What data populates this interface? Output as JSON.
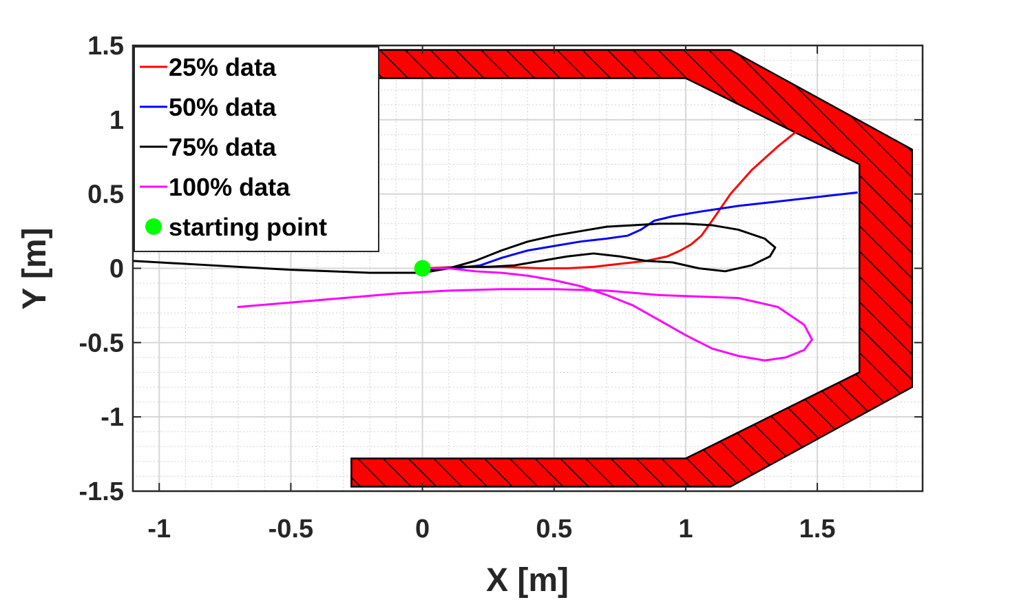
{
  "chart_data": {
    "type": "line",
    "xlabel": "X [m]",
    "ylabel": "Y [m]",
    "xlim": [
      -1.1,
      1.9
    ],
    "ylim": [
      -1.5,
      1.5
    ],
    "xticks": [
      -1,
      -0.5,
      0,
      0.5,
      1,
      1.5
    ],
    "xtick_labels": [
      "-1",
      "-0.5",
      "0",
      "0.5",
      "1",
      "1.5"
    ],
    "yticks": [
      1.5,
      1,
      0.5,
      0,
      -0.5,
      -1,
      -1.5
    ],
    "ytick_labels": [
      "1.5",
      "1",
      "0.5",
      "0",
      "-0.5",
      "-1",
      "-1.5"
    ],
    "grid": true,
    "minor_grid": true,
    "legend_position": "top-left",
    "obstacles": [
      {
        "fill": "#ff0000",
        "hatch": "diagonal",
        "points": [
          [
            -0.2,
            1.47
          ],
          [
            1.17,
            1.47
          ],
          [
            1.86,
            0.8
          ],
          [
            1.86,
            -0.8
          ],
          [
            1.17,
            -1.47
          ],
          [
            -0.27,
            -1.47
          ],
          [
            -0.27,
            -1.28
          ],
          [
            1.0,
            -1.28
          ],
          [
            1.66,
            -0.7
          ],
          [
            1.66,
            0.7
          ],
          [
            1.0,
            1.28
          ],
          [
            -0.2,
            1.28
          ]
        ]
      }
    ],
    "series": [
      {
        "name": "25% data",
        "color": "#ff0000",
        "x": [
          0,
          0.15,
          0.3,
          0.45,
          0.55,
          0.65,
          0.75,
          0.85,
          0.93,
          0.98,
          1.02,
          1.06,
          1.1,
          1.17,
          1.25,
          1.35,
          1.42
        ],
        "y": [
          0,
          0.01,
          0.01,
          0.0,
          0.0,
          0.01,
          0.03,
          0.05,
          0.08,
          0.12,
          0.16,
          0.22,
          0.32,
          0.5,
          0.66,
          0.82,
          0.92
        ]
      },
      {
        "name": "50% data",
        "color": "#0000ff",
        "x": [
          0,
          0.12,
          0.22,
          0.3,
          0.4,
          0.5,
          0.6,
          0.7,
          0.78,
          0.83,
          0.88,
          0.95,
          1.05,
          1.2,
          1.35,
          1.5,
          1.65
        ],
        "y": [
          0,
          0.0,
          0.02,
          0.07,
          0.12,
          0.15,
          0.18,
          0.2,
          0.22,
          0.26,
          0.32,
          0.35,
          0.38,
          0.42,
          0.45,
          0.48,
          0.51
        ]
      },
      {
        "name": "75% data",
        "color": "#000000",
        "x": [
          -1.1,
          -0.8,
          -0.5,
          -0.2,
          0,
          0.1,
          0.2,
          0.3,
          0.4,
          0.5,
          0.6,
          0.7,
          0.8,
          0.9,
          1.0,
          1.1,
          1.2,
          1.3,
          1.34,
          1.32,
          1.25,
          1.15,
          1.05,
          0.95,
          0.85,
          0.75,
          0.65,
          0.55,
          0.45,
          0.35,
          0.25,
          0.15,
          0.07,
          0
        ],
        "y": [
          0.05,
          0.02,
          -0.01,
          -0.03,
          -0.03,
          0.0,
          0.05,
          0.12,
          0.18,
          0.22,
          0.25,
          0.28,
          0.29,
          0.3,
          0.3,
          0.29,
          0.26,
          0.2,
          0.14,
          0.08,
          0.02,
          -0.02,
          0.0,
          0.04,
          0.05,
          0.08,
          0.1,
          0.08,
          0.05,
          0.02,
          0.01,
          0.01,
          0.0,
          -0.02
        ]
      },
      {
        "name": "100% data",
        "color": "#ff00ff",
        "x": [
          0,
          0.1,
          0.2,
          0.3,
          0.4,
          0.5,
          0.6,
          0.7,
          0.8,
          0.9,
          1.0,
          1.1,
          1.2,
          1.3,
          1.38,
          1.45,
          1.48,
          1.45,
          1.35,
          1.2,
          1.05,
          0.9,
          0.7,
          0.5,
          0.3,
          0.1,
          -0.1,
          -0.3,
          -0.5,
          -0.7
        ],
        "y": [
          0,
          0.0,
          -0.02,
          -0.03,
          -0.05,
          -0.08,
          -0.12,
          -0.18,
          -0.25,
          -0.35,
          -0.45,
          -0.54,
          -0.59,
          -0.62,
          -0.6,
          -0.55,
          -0.48,
          -0.38,
          -0.26,
          -0.2,
          -0.19,
          -0.18,
          -0.15,
          -0.14,
          -0.14,
          -0.15,
          -0.17,
          -0.2,
          -0.23,
          -0.26
        ]
      }
    ],
    "markers": [
      {
        "name": "starting point",
        "color": "#00ff00",
        "x": 0,
        "y": 0
      }
    ]
  }
}
